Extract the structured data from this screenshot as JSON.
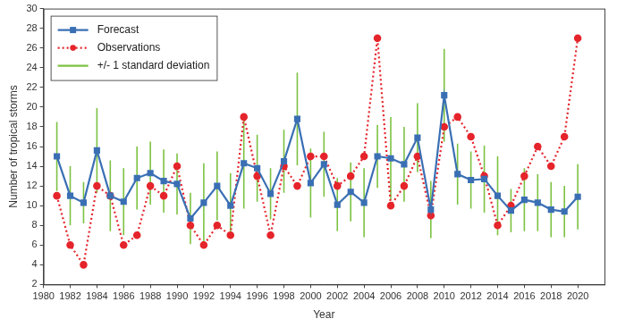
{
  "chart_data": {
    "type": "line",
    "x_label": "Year",
    "y_label": "Number of tropical storms",
    "x": [
      1981,
      1982,
      1983,
      1984,
      1985,
      1986,
      1987,
      1988,
      1989,
      1990,
      1991,
      1992,
      1993,
      1994,
      1995,
      1996,
      1997,
      1998,
      1999,
      2000,
      2001,
      2002,
      2003,
      2004,
      2005,
      2006,
      2007,
      2008,
      2009,
      2010,
      2011,
      2012,
      2013,
      2014,
      2015,
      2016,
      2017,
      2018,
      2019,
      2020
    ],
    "series": [
      {
        "name": "Forecast",
        "color": "#3a6fb4",
        "marker": "square",
        "line_style": "solid",
        "values": [
          15,
          11,
          10.3,
          15.6,
          11,
          10.4,
          12.8,
          13.3,
          12.5,
          12.2,
          8.7,
          10.3,
          12,
          10,
          14.3,
          13.8,
          11.2,
          14.5,
          18.8,
          12.3,
          14.2,
          10.1,
          11.4,
          10.3,
          15,
          14.8,
          14.2,
          16.9,
          9.6,
          21.2,
          13.2,
          12.6,
          12.7,
          11,
          9.5,
          10.6,
          10.3,
          9.6,
          9.4,
          10.9
        ],
        "error": {
          "name": "+/- 1 standard deviation",
          "color": "#7cc242",
          "values": [
            3.5,
            3,
            2.1,
            4.3,
            3.6,
            3.4,
            3.2,
            3.2,
            3.2,
            3.1,
            2.6,
            4,
            3.5,
            3.3,
            4.6,
            3.4,
            2.6,
            3.2,
            4.7,
            3.5,
            3.3,
            2.7,
            3,
            3.5,
            3.2,
            4.2,
            3.8,
            3.5,
            2.9,
            4.7,
            3.1,
            2.9,
            3.4,
            4,
            2.2,
            3.2,
            2.9,
            2.8,
            2.6,
            3.3
          ]
        }
      },
      {
        "name": "Observations",
        "color": "#e5242b",
        "marker": "circle",
        "line_style": "dotted",
        "values": [
          11,
          6,
          4,
          12,
          11,
          6,
          7,
          12,
          11,
          14,
          8,
          6,
          8,
          7,
          19,
          13,
          7,
          14,
          12,
          15,
          15,
          12,
          13,
          15,
          27,
          10,
          12,
          15,
          9,
          18,
          19,
          17,
          13,
          8,
          10,
          13,
          16,
          14,
          17,
          27
        ]
      }
    ],
    "xlim": [
      1980,
      2022
    ],
    "xticks": [
      1980,
      1982,
      1984,
      1986,
      1988,
      1990,
      1992,
      1994,
      1996,
      1998,
      2000,
      2002,
      2004,
      2006,
      2008,
      2010,
      2012,
      2014,
      2016,
      2018,
      2020
    ],
    "ylim": [
      2,
      30
    ],
    "yticks": [
      2,
      4,
      6,
      8,
      10,
      12,
      14,
      16,
      18,
      20,
      22,
      24,
      26,
      28,
      30
    ],
    "grid": false,
    "legend": "upper left"
  }
}
